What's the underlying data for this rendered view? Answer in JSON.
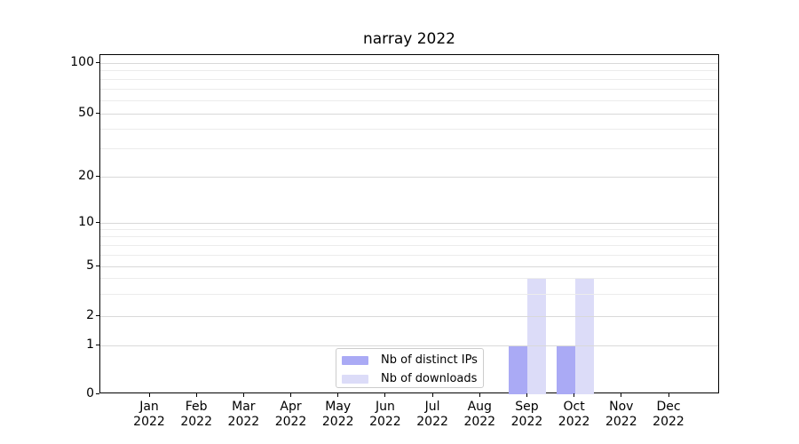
{
  "chart_data": {
    "type": "bar",
    "title": "narray 2022",
    "categories": [
      "Jan",
      "Feb",
      "Mar",
      "Apr",
      "May",
      "Jun",
      "Jul",
      "Aug",
      "Sep",
      "Oct",
      "Nov",
      "Dec"
    ],
    "year_label": "2022",
    "series": [
      {
        "name": "Nb of distinct IPs",
        "color": "#aaaaf5",
        "values": [
          0,
          0,
          0,
          0,
          0,
          0,
          0,
          0,
          1,
          1,
          0,
          0
        ]
      },
      {
        "name": "Nb of downloads",
        "color": "#dcdcf8",
        "values": [
          0,
          0,
          0,
          0,
          0,
          0,
          0,
          0,
          4,
          4,
          0,
          0
        ]
      }
    ],
    "yticks": [
      0,
      1,
      2,
      5,
      10,
      20,
      50,
      100
    ],
    "yscale": "symlog",
    "ylim": [
      0,
      100
    ],
    "xlabel": "",
    "ylabel": "",
    "grid": true,
    "legend_position": "lower-center-inside"
  },
  "colors": {
    "background": "#ffffff",
    "axis": "#000000",
    "text": "#000000",
    "grid_major": "#d9d9d9",
    "grid_minor": "#ececec",
    "legend_border": "#cccccc"
  }
}
